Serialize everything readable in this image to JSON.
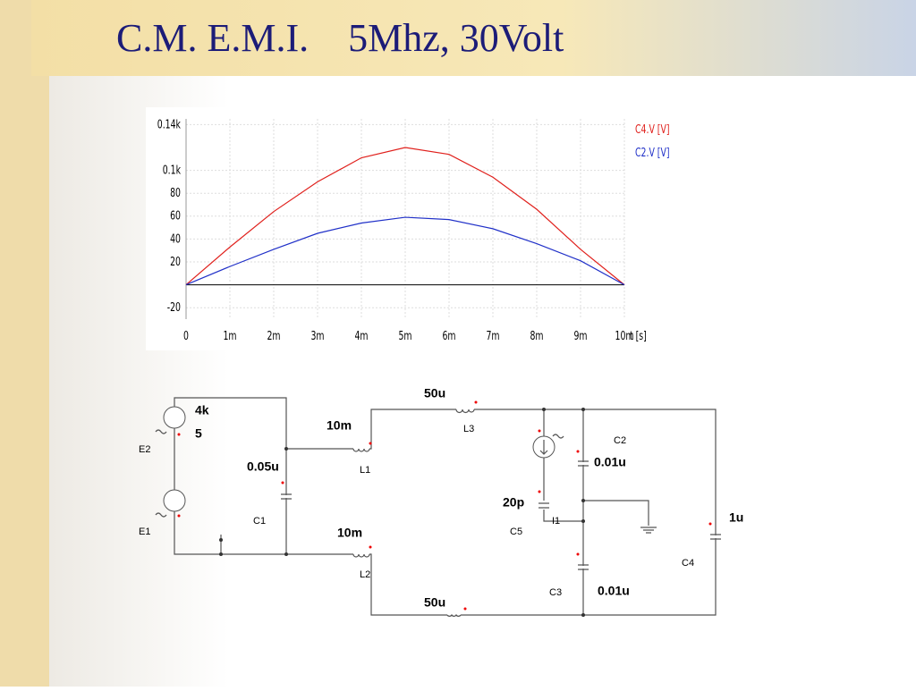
{
  "title": "C.M. E.M.I.    5Mhz, 30Volt",
  "chart_data": {
    "type": "line",
    "x": [
      0,
      0.001,
      0.002,
      0.003,
      0.004,
      0.005,
      0.006,
      0.007,
      0.008,
      0.009,
      0.01
    ],
    "series": [
      {
        "name": "C4.V [V]",
        "color": "#e0201c",
        "values": [
          0,
          33,
          64,
          90,
          111,
          120,
          114,
          94,
          66,
          31,
          0
        ]
      },
      {
        "name": "C2.V [V]",
        "color": "#2030c8",
        "values": [
          0,
          16,
          31,
          45,
          54,
          59,
          57,
          49,
          36,
          21,
          0
        ]
      }
    ],
    "xlim": [
      0,
      0.01
    ],
    "xticks": [
      0,
      {
        "value": 0.001,
        "label": "1m"
      },
      {
        "value": 0.002,
        "label": "2m"
      },
      {
        "value": 0.003,
        "label": "3m"
      },
      {
        "value": 0.004,
        "label": "4m"
      },
      {
        "value": 0.005,
        "label": "5m"
      },
      {
        "value": 0.006,
        "label": "6m"
      },
      {
        "value": 0.007,
        "label": "7m"
      },
      {
        "value": 0.008,
        "label": "8m"
      },
      {
        "value": 0.009,
        "label": "9m"
      },
      {
        "value": 0.01,
        "label": "10m"
      }
    ],
    "ylim": [
      -30,
      145
    ],
    "yticks": [
      -20,
      20,
      40,
      60,
      80,
      {
        "value": 100,
        "label": "0.1k"
      },
      {
        "value": 140,
        "label": "0.14k"
      }
    ],
    "x_label": "t [s]",
    "grid": true,
    "legend": "top-right"
  },
  "circuit": {
    "labels": [
      "4k",
      "5",
      "E2",
      "E1",
      "0.05u",
      "C1",
      "10m",
      "L1",
      "10m",
      "L2",
      "50u",
      "L3",
      "50u",
      "20p",
      "C5",
      "I1",
      "C2",
      "0.01u",
      "C3",
      "0.01u",
      "1u",
      "C4"
    ]
  }
}
